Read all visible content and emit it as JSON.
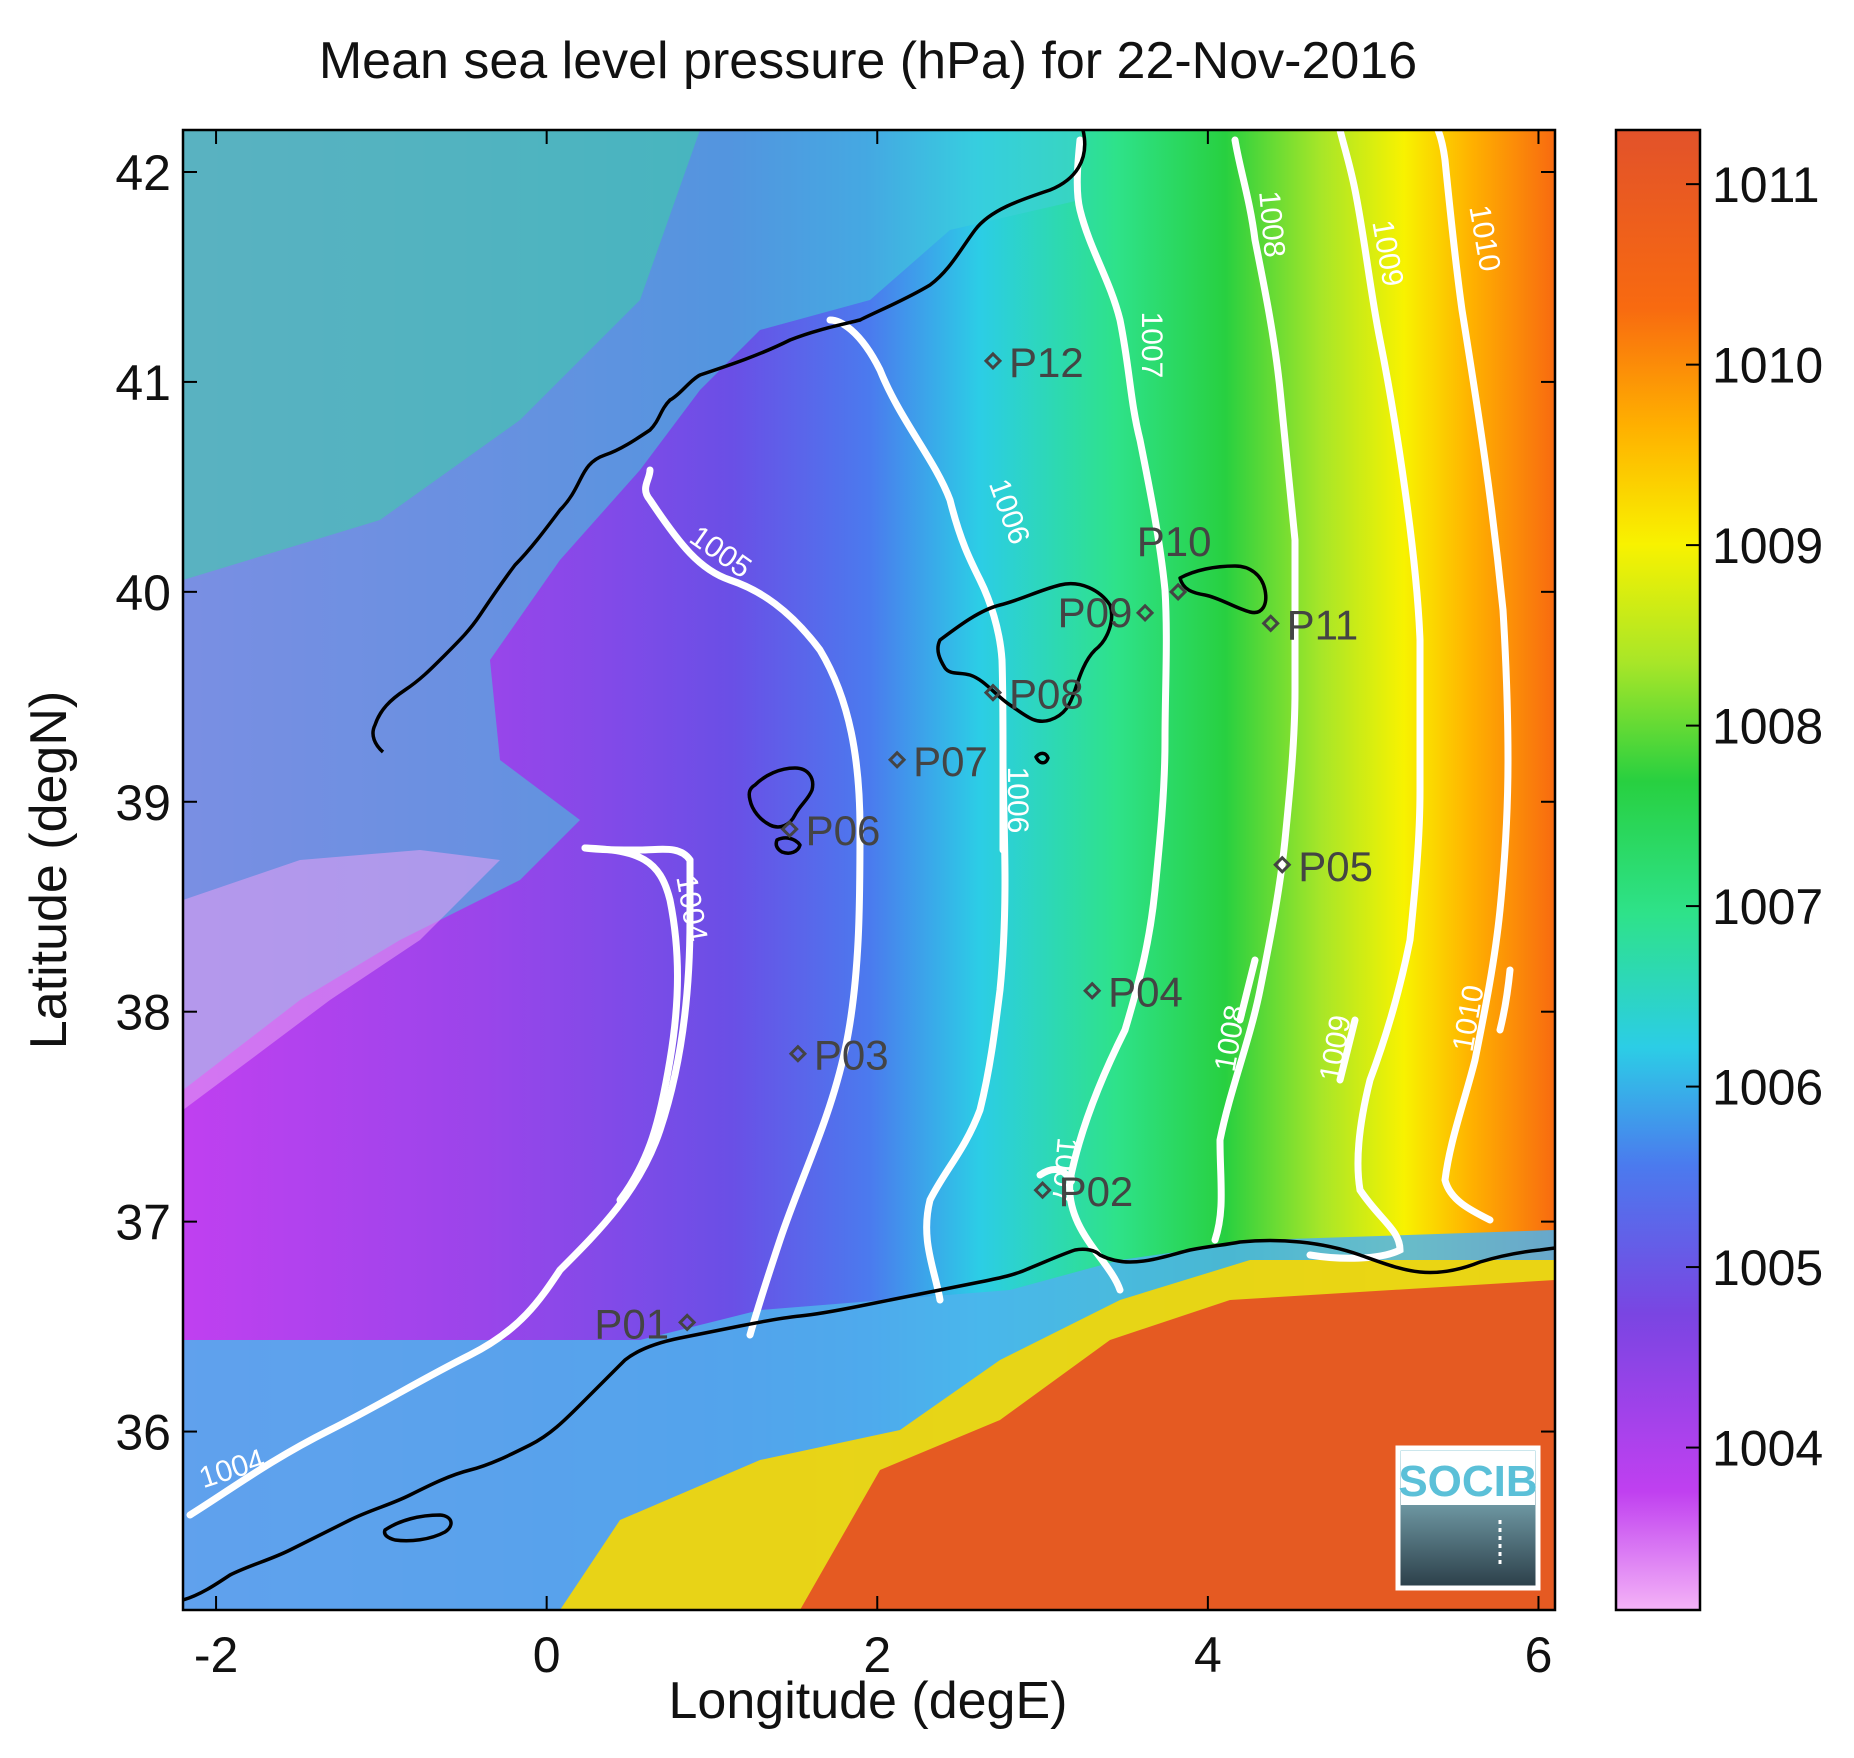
{
  "title": "Mean sea level pressure (hPa) for 22-Nov-2016",
  "xlabel": "Longitude (degE)",
  "ylabel": "Latitude (degN)",
  "x_ticks": [
    "-2",
    "0",
    "2",
    "4",
    "6"
  ],
  "y_ticks": [
    "36",
    "37",
    "38",
    "39",
    "40",
    "41",
    "42"
  ],
  "colorbar_ticks": [
    "1004",
    "1005",
    "1006",
    "1007",
    "1008",
    "1009",
    "1010",
    "1011"
  ],
  "logo_text": "SOCIB",
  "map": {
    "lon_range": [
      -2.2,
      6.1
    ],
    "lat_range": [
      35.15,
      42.2
    ],
    "colorbar_range_hPa": [
      1003.1,
      1011.3
    ],
    "colormap": [
      "#f4b3f7",
      "#c040f0",
      "#7a45e2",
      "#4b7aee",
      "#2ccde6",
      "#2ee28a",
      "#28d040",
      "#a8e628",
      "#f8f200",
      "#ffb000",
      "#f86a10",
      "#e2522a"
    ],
    "coastline_color": "#000000",
    "contour_color": "#ffffff"
  },
  "contours": [
    {
      "label": "1004"
    },
    {
      "label": "1004"
    },
    {
      "label": "1005"
    },
    {
      "label": "1006"
    },
    {
      "label": "1006"
    },
    {
      "label": "1007"
    },
    {
      "label": "1007"
    },
    {
      "label": "1008"
    },
    {
      "label": "1008"
    },
    {
      "label": "1009"
    },
    {
      "label": "1009"
    },
    {
      "label": "1010"
    },
    {
      "label": "1010"
    }
  ],
  "stations": [
    {
      "name": "P01",
      "lon": 0.85,
      "lat": 36.52
    },
    {
      "name": "P02",
      "lon": 3.0,
      "lat": 37.15
    },
    {
      "name": "P03",
      "lon": 1.52,
      "lat": 37.8
    },
    {
      "name": "P04",
      "lon": 3.3,
      "lat": 38.1
    },
    {
      "name": "P05",
      "lon": 4.45,
      "lat": 38.7
    },
    {
      "name": "P06",
      "lon": 1.47,
      "lat": 38.87
    },
    {
      "name": "P07",
      "lon": 2.12,
      "lat": 39.2
    },
    {
      "name": "P08",
      "lon": 2.7,
      "lat": 39.52
    },
    {
      "name": "P09",
      "lon": 3.62,
      "lat": 39.9
    },
    {
      "name": "P10",
      "lon": 3.82,
      "lat": 40.0
    },
    {
      "name": "P11",
      "lon": 4.38,
      "lat": 39.85
    },
    {
      "name": "P12",
      "lon": 2.7,
      "lat": 41.1
    }
  ]
}
